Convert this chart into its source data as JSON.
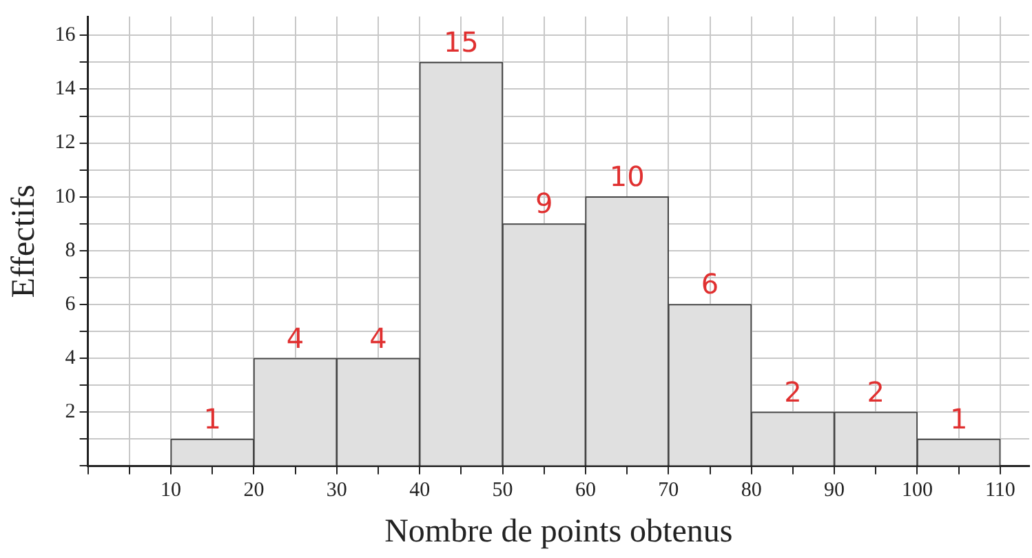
{
  "chart_data": {
    "type": "histogram",
    "xlabel": "Nombre de points obtenus",
    "ylabel": "Effectifs",
    "bins": [
      10,
      20,
      30,
      40,
      50,
      60,
      70,
      80,
      90,
      100,
      110
    ],
    "values": [
      1,
      4,
      4,
      15,
      9,
      10,
      6,
      2,
      2,
      1
    ],
    "color": "#e0e0e0",
    "data_labels": true,
    "xlim": [
      0,
      113.5
    ],
    "xticks": [
      {
        "value": 0,
        "label": null
      },
      {
        "value": 5,
        "label": null
      },
      10,
      {
        "value": 15,
        "label": null
      },
      20,
      {
        "value": 25,
        "label": null
      },
      30,
      {
        "value": 35,
        "label": null
      },
      40,
      {
        "value": 45,
        "label": null
      },
      50,
      {
        "value": 55,
        "label": null
      },
      60,
      {
        "value": 65,
        "label": null
      },
      70,
      {
        "value": 75,
        "label": null
      },
      80,
      {
        "value": 85,
        "label": null
      },
      90,
      {
        "value": 95,
        "label": null
      },
      100,
      {
        "value": 105,
        "label": null
      },
      110
    ],
    "ylim": [
      0,
      16.7
    ],
    "yticks": [
      {
        "value": 0,
        "label": null
      },
      {
        "value": 1,
        "label": null
      },
      2,
      {
        "value": 3,
        "label": null
      },
      4,
      {
        "value": 5,
        "label": null
      },
      6,
      {
        "value": 7,
        "label": null
      },
      8,
      {
        "value": 9,
        "label": null
      },
      10,
      {
        "value": 11,
        "label": null
      },
      12,
      {
        "value": 13,
        "label": null
      },
      14,
      {
        "value": 15,
        "label": null
      },
      16
    ],
    "grid": true,
    "legend": false
  }
}
